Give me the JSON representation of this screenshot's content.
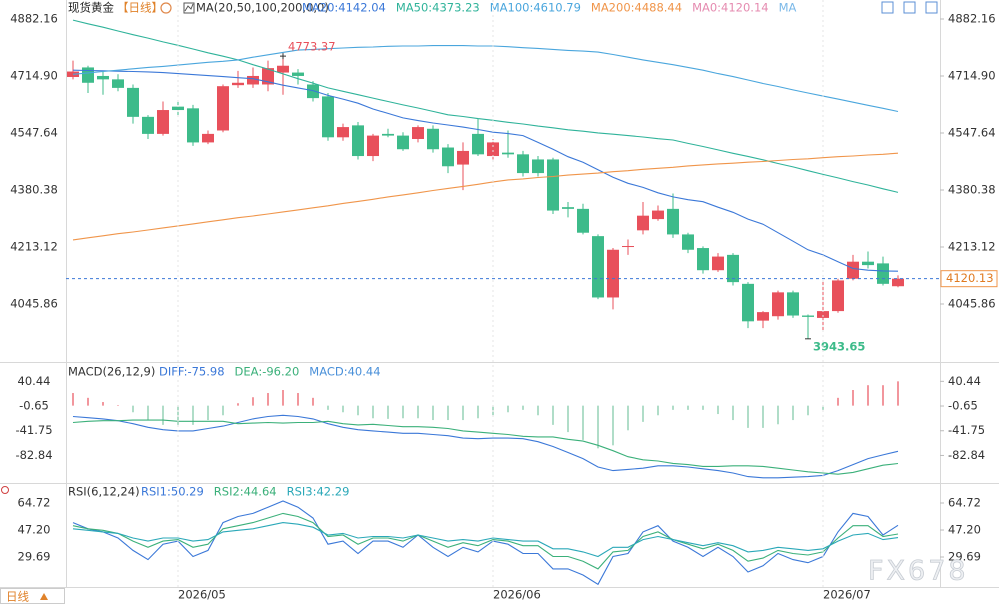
{
  "chart_data": [
    {
      "type": "candlestick",
      "title": "现货黄金",
      "period": "【日线】",
      "subtitle": "MA(20,50,100,200,0,0)",
      "up_color": "#e8505b",
      "down_color": "#3dbb8a",
      "open": [
        4712,
        4740,
        4715,
        4705,
        4680,
        4595,
        4545,
        4625,
        4620,
        4520,
        4555,
        4688,
        4690,
        4690,
        4725,
        4725,
        4690,
        4655,
        4535,
        4570,
        4480,
        4545,
        4540,
        4530,
        4560,
        4505,
        4455,
        4545,
        4480,
        4490,
        4485,
        4470,
        4470,
        4330,
        4325,
        4245,
        4065,
        4213,
        4262,
        4295,
        4325,
        4250,
        4210,
        4145,
        4190,
        4105,
        3997,
        4010,
        4080,
        4012,
        4005,
        4025,
        4120,
        4170,
        4165,
        4098
      ],
      "high": [
        4760,
        4745,
        4730,
        4720,
        4690,
        4600,
        4640,
        4640,
        4630,
        4555,
        4690,
        4730,
        4740,
        4760,
        4773.37,
        4735,
        4700,
        4665,
        4575,
        4580,
        4545,
        4560,
        4550,
        4570,
        4570,
        4515,
        4520,
        4590,
        4530,
        4555,
        4495,
        4480,
        4475,
        4345,
        4340,
        4250,
        4210,
        4235,
        4345,
        4335,
        4370,
        4255,
        4215,
        4195,
        4195,
        4110,
        4025,
        4085,
        4085,
        4015,
        4115,
        4120,
        4190,
        4200,
        4185,
        4130
      ],
      "low": [
        4705,
        4665,
        4660,
        4670,
        4575,
        4530,
        4540,
        4600,
        4510,
        4515,
        4550,
        4680,
        4680,
        4670,
        4660,
        4690,
        4640,
        4525,
        4525,
        4470,
        4465,
        4535,
        4495,
        4520,
        4490,
        4430,
        4380,
        4480,
        4470,
        4475,
        4420,
        4420,
        4310,
        4300,
        4250,
        4060,
        4030,
        4190,
        4250,
        4290,
        4240,
        4195,
        4135,
        4140,
        4100,
        3975,
        3975,
        4000,
        4005,
        3943.65,
        3965,
        4020,
        4115,
        4150,
        4100,
        4095
      ],
      "close": [
        4728,
        4695,
        4705,
        4680,
        4595,
        4545,
        4615,
        4615,
        4520,
        4545,
        4685,
        4695,
        4715,
        4738,
        4745,
        4715,
        4650,
        4535,
        4565,
        4480,
        4540,
        4540,
        4500,
        4565,
        4500,
        4450,
        4495,
        4485,
        4520,
        4485,
        4430,
        4430,
        4320,
        4325,
        4255,
        4065,
        4205,
        4216,
        4305,
        4320,
        4250,
        4205,
        4145,
        4185,
        4110,
        3995,
        4022,
        4080,
        4012,
        4008,
        4025,
        4115,
        4170,
        4160,
        4105,
        4120.13
      ],
      "series": [
        {
          "name": "MA20:4142.04",
          "color": "#3b78d8",
          "values": [
            4732,
            4731,
            4730,
            4729,
            4728,
            4727,
            4725,
            4722,
            4719,
            4716,
            4713,
            4710,
            4707,
            4698,
            4688,
            4680,
            4672,
            4658,
            4647,
            4635,
            4618,
            4605,
            4592,
            4584,
            4577,
            4571,
            4565,
            4558,
            4550,
            4546,
            4540,
            4520,
            4500,
            4478,
            4462,
            4440,
            4418,
            4400,
            4388,
            4372,
            4360,
            4352,
            4346,
            4330,
            4315,
            4295,
            4280,
            4255,
            4230,
            4205,
            4190,
            4170,
            4150,
            4145,
            4143,
            4142.04
          ]
        },
        {
          "name": "MA50:4373.23",
          "color": "#2fb39a",
          "values": [
            4879,
            4868,
            4858,
            4847,
            4836,
            4826,
            4815,
            4805,
            4794,
            4783,
            4773,
            4762,
            4748,
            4735,
            4721,
            4707,
            4694,
            4680,
            4670,
            4660,
            4650,
            4640,
            4630,
            4621,
            4611,
            4601,
            4596,
            4590,
            4585,
            4579,
            4574,
            4568,
            4563,
            4557,
            4553,
            4548,
            4544,
            4540,
            4536,
            4531,
            4527,
            4517,
            4508,
            4498,
            4488,
            4479,
            4469,
            4458,
            4448,
            4437,
            4426,
            4416,
            4405,
            4395,
            4384,
            4373.23
          ]
        },
        {
          "name": "MA100:4610.79",
          "color": "#4aa6dd",
          "values": [
            4720,
            4724,
            4728,
            4732,
            4736,
            4740,
            4743,
            4747,
            4751,
            4755,
            4758,
            4762,
            4770,
            4777,
            4784,
            4791,
            4793,
            4795,
            4797,
            4799,
            4800,
            4802,
            4803,
            4803,
            4804,
            4804,
            4804,
            4803,
            4803,
            4801,
            4798,
            4796,
            4793,
            4790,
            4788,
            4785,
            4778,
            4770,
            4762,
            4755,
            4748,
            4740,
            4732,
            4722,
            4713,
            4703,
            4693,
            4684,
            4674,
            4665,
            4656,
            4647,
            4638,
            4629,
            4620,
            4610.79
          ]
        },
        {
          "name": "MA200:4488.44",
          "color": "#f0954a",
          "values": [
            4234,
            4240,
            4246,
            4252,
            4257,
            4263,
            4269,
            4275,
            4281,
            4287,
            4293,
            4299,
            4304,
            4310,
            4316,
            4322,
            4328,
            4334,
            4341,
            4347,
            4353,
            4360,
            4366,
            4372,
            4379,
            4385,
            4391,
            4397,
            4404,
            4410,
            4413,
            4417,
            4420,
            4424,
            4427,
            4430,
            4434,
            4437,
            4441,
            4444,
            4447,
            4451,
            4454,
            4457,
            4459,
            4462,
            4464,
            4467,
            4470,
            4472,
            4475,
            4478,
            4480,
            4483,
            4485,
            4488.44
          ]
        }
      ],
      "legend_extra": [
        {
          "name": "MA0:4120.14",
          "color": "#e58bb0"
        },
        {
          "name": "MA",
          "color": "#7ab8e8"
        }
      ],
      "ylim": [
        3881.5,
        4937.9
      ],
      "yticks": [
        4882.16,
        {
          "value": 4714.9,
          "label": "4714.90"
        },
        4547.64,
        4380.38,
        4213.12,
        4045.86
      ]
    },
    {
      "type": "macd",
      "title": "MACD(26,12,9)",
      "histogram": {
        "name": "MACD:40.44",
        "color": "#4a90d9",
        "up_color": "#e8505b",
        "down_color": "#7cc6a4",
        "values": [
          21,
          13,
          6,
          1,
          -11,
          -24,
          -32,
          -32,
          -32,
          -24,
          -16,
          4,
          14,
          21,
          26,
          21,
          13,
          -7,
          -11,
          -16,
          -21,
          -22,
          -21,
          -21,
          -24,
          -24,
          -24,
          -21,
          -16,
          -11,
          -7,
          -16,
          -32,
          -44,
          -57,
          -71,
          -66,
          -41,
          -27,
          -16,
          -7,
          -7,
          -7,
          -14,
          -24,
          -37,
          -37,
          -31,
          -24,
          -16,
          -7,
          13,
          26,
          34,
          34,
          40.44
        ]
      },
      "series": [
        {
          "name": "DIFF:-75.98",
          "color": "#3b78d8",
          "values": [
            -18,
            -20,
            -22,
            -25,
            -30,
            -36,
            -40,
            -42,
            -42,
            -38,
            -34,
            -28,
            -22,
            -18,
            -16,
            -18,
            -22,
            -30,
            -36,
            -40,
            -42,
            -44,
            -46,
            -46,
            -48,
            -50,
            -54,
            -55,
            -54,
            -54,
            -55,
            -60,
            -68,
            -78,
            -88,
            -102,
            -108,
            -106,
            -104,
            -100,
            -100,
            -102,
            -105,
            -108,
            -112,
            -118,
            -120,
            -120,
            -119,
            -118,
            -116,
            -108,
            -98,
            -88,
            -82,
            -75.98
          ]
        },
        {
          "name": "DEA:-96.20",
          "color": "#3bb07a",
          "values": [
            -28,
            -26,
            -25,
            -25,
            -24,
            -24,
            -24,
            -26,
            -26,
            -26,
            -26,
            -30,
            -29,
            -28,
            -29,
            -28,
            -28,
            -26,
            -30,
            -32,
            -31,
            -33,
            -35,
            -35,
            -36,
            -38,
            -42,
            -44,
            -46,
            -48,
            -51,
            -52,
            -52,
            -56,
            -59,
            -66,
            -75,
            -85,
            -90,
            -92,
            -96,
            -98,
            -101,
            -101,
            -100,
            -100,
            -101,
            -104,
            -107,
            -110,
            -112,
            -114,
            -111,
            -105,
            -99,
            -96.2
          ]
        }
      ],
      "ylim": [
        -127,
        67.6
      ],
      "yticks": [
        40.44,
        -0.65,
        -41.75,
        -82.84
      ]
    },
    {
      "type": "rsi",
      "title": "RSI(6,12,24)",
      "series": [
        {
          "name": "RSI1:50.29",
          "color": "#3b78d8",
          "values": [
            52,
            48,
            46,
            42,
            34,
            28,
            38,
            40,
            30,
            34,
            52,
            56,
            58,
            62,
            66,
            62,
            55,
            38,
            40,
            32,
            40,
            40,
            36,
            44,
            36,
            30,
            36,
            33,
            40,
            38,
            32,
            32,
            22,
            22,
            18,
            12,
            30,
            32,
            46,
            50,
            40,
            36,
            30,
            36,
            30,
            20,
            24,
            32,
            28,
            26,
            30,
            46,
            58,
            56,
            44,
            50.29
          ]
        },
        {
          "name": "RSI2:44.64",
          "color": "#3bb07a",
          "values": [
            50,
            48,
            47,
            45,
            40,
            36,
            40,
            41,
            36,
            38,
            48,
            50,
            52,
            55,
            58,
            56,
            52,
            43,
            44,
            38,
            42,
            42,
            40,
            44,
            40,
            36,
            39,
            37,
            41,
            40,
            37,
            37,
            30,
            30,
            27,
            22,
            33,
            34,
            43,
            46,
            41,
            38,
            35,
            38,
            34,
            27,
            29,
            34,
            32,
            31,
            33,
            42,
            50,
            50,
            43,
            44.64
          ]
        },
        {
          "name": "RSI3:42.29",
          "color": "#2aa8b8",
          "values": [
            48,
            47,
            46,
            45,
            42,
            40,
            42,
            42,
            40,
            41,
            46,
            47,
            48,
            50,
            52,
            51,
            49,
            44,
            45,
            42,
            43,
            43,
            42,
            44,
            42,
            40,
            41,
            40,
            42,
            41,
            40,
            40,
            35,
            35,
            33,
            30,
            36,
            36,
            41,
            43,
            41,
            39,
            37,
            39,
            37,
            33,
            34,
            36,
            35,
            34,
            35,
            40,
            44,
            45,
            41,
            42.29
          ]
        }
      ],
      "ylim": [
        8.3,
        76.4
      ],
      "yticks": [
        64.72,
        {
          "value": 47.2,
          "label": "47.20"
        },
        29.69
      ],
      "xticks": [
        {
          "value": 7,
          "label": "2026/05"
        },
        {
          "value": 28,
          "label": "2026/06"
        },
        {
          "value": 50,
          "label": "2026/07"
        }
      ]
    }
  ],
  "footer": "日线",
  "watermark": "FX678"
}
